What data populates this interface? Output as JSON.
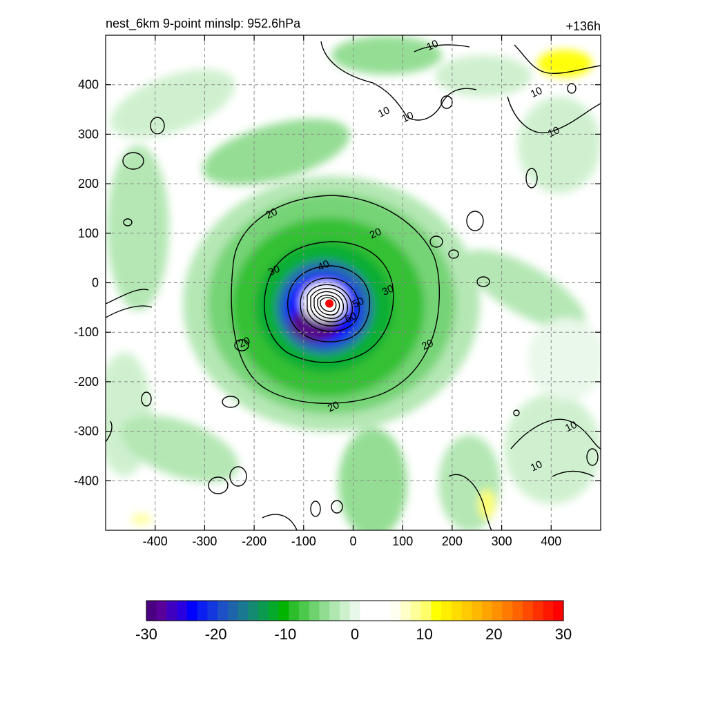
{
  "chart_data": {
    "type": "heatmap",
    "title_left": "nest_6km  9-point minslp: 952.6hPa",
    "title_right": "+136h",
    "xlim": [
      -500,
      500
    ],
    "ylim": [
      -500,
      500
    ],
    "x_ticks": [
      "-400",
      "-300",
      "-200",
      "-100",
      "0",
      "100",
      "200",
      "300",
      "400"
    ],
    "y_ticks": [
      "400",
      "300",
      "200",
      "100",
      "0",
      "-100",
      "-200",
      "-300",
      "-400"
    ],
    "x_tick_values": [
      -400,
      -300,
      -200,
      -100,
      0,
      100,
      200,
      300,
      400
    ],
    "y_tick_values": [
      400,
      300,
      200,
      100,
      0,
      -100,
      -200,
      -300,
      -400
    ],
    "grid": true,
    "center": {
      "x": -48,
      "y": -42
    },
    "colorbar": {
      "range": [
        -30,
        30
      ],
      "ticks": [
        "-30",
        "-20",
        "-10",
        "0",
        "10",
        "20",
        "30"
      ],
      "tick_values": [
        -30,
        -20,
        -10,
        0,
        10,
        20,
        30
      ],
      "colors": [
        "#4b0082",
        "#5a009b",
        "#3f00c0",
        "#2a00e0",
        "#0000ff",
        "#0a1ff0",
        "#1438e0",
        "#1e50c8",
        "#1e64aa",
        "#1a7890",
        "#148a70",
        "#0c9a50",
        "#06aa2a",
        "#00b400",
        "#2cbe2c",
        "#4cc84c",
        "#6ed26e",
        "#90dc90",
        "#b0e6b0",
        "#cdf0cd",
        "#e8f8e8",
        "#ffffff",
        "#ffffff",
        "#ffffff",
        "#fffff0",
        "#ffffc8",
        "#ffff9a",
        "#ffff6a",
        "#ffff00",
        "#ffee00",
        "#ffdc00",
        "#ffca00",
        "#ffb800",
        "#ffa400",
        "#ff9000",
        "#ff7a00",
        "#ff6400",
        "#ff4a00",
        "#ff3000",
        "#ff1800",
        "#ff0000"
      ]
    },
    "contour_labels": [
      {
        "text": "10",
        "x": 160,
        "y": 480
      },
      {
        "text": "10",
        "x": 62,
        "y": 345
      },
      {
        "text": "10",
        "x": 110,
        "y": 335
      },
      {
        "text": "10",
        "x": 370,
        "y": 385
      },
      {
        "text": "10",
        "x": 405,
        "y": 305
      },
      {
        "text": "10",
        "x": 440,
        "y": -290
      },
      {
        "text": "10",
        "x": 370,
        "y": -370
      },
      {
        "text": "20",
        "x": -165,
        "y": 140
      },
      {
        "text": "20",
        "x": 45,
        "y": 100
      },
      {
        "text": "20",
        "x": 150,
        "y": -125
      },
      {
        "text": "20",
        "x": -220,
        "y": -120
      },
      {
        "text": "20",
        "x": -40,
        "y": -250
      },
      {
        "text": "30",
        "x": -160,
        "y": 25
      },
      {
        "text": "30",
        "x": 70,
        "y": -15
      },
      {
        "text": "40",
        "x": -60,
        "y": 35
      },
      {
        "text": "50",
        "x": 10,
        "y": -40
      },
      {
        "text": "60",
        "x": -5,
        "y": -70
      }
    ]
  }
}
